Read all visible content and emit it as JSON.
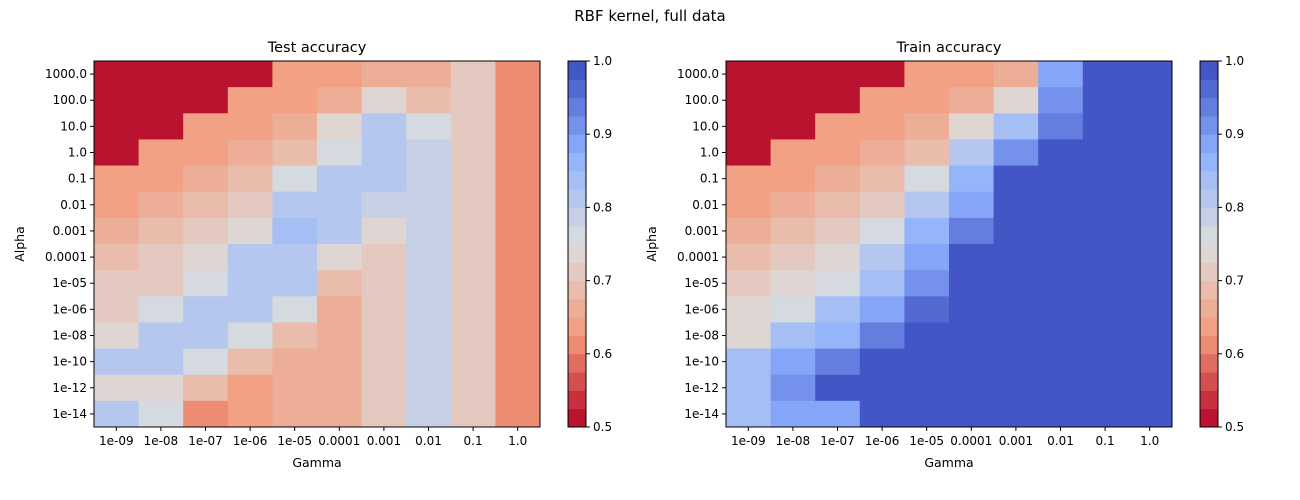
{
  "figure_title": "RBF kernel, full data",
  "chart_data": [
    {
      "type": "heatmap",
      "title": "Test accuracy",
      "xlabel": "Gamma",
      "ylabel": "Alpha",
      "x_categories": [
        "1e-09",
        "1e-08",
        "1e-07",
        "1e-06",
        "1e-05",
        "0.0001",
        "0.001",
        "0.01",
        "0.1",
        "1.0"
      ],
      "y_categories": [
        "1000.0",
        "100.0",
        "10.0",
        "1.0",
        "0.1",
        "0.01",
        "0.001",
        "0.0001",
        "1e-05",
        "1e-06",
        "1e-08",
        "1e-10",
        "1e-12",
        "1e-14"
      ],
      "values": [
        [
          0.5,
          0.5,
          0.5,
          0.5,
          0.64,
          0.64,
          0.67,
          0.67,
          0.71,
          0.62
        ],
        [
          0.5,
          0.5,
          0.5,
          0.64,
          0.64,
          0.66,
          0.73,
          0.7,
          0.71,
          0.62
        ],
        [
          0.5,
          0.5,
          0.64,
          0.64,
          0.66,
          0.73,
          0.81,
          0.75,
          0.71,
          0.62
        ],
        [
          0.5,
          0.64,
          0.64,
          0.66,
          0.7,
          0.77,
          0.81,
          0.78,
          0.71,
          0.62
        ],
        [
          0.64,
          0.64,
          0.66,
          0.7,
          0.75,
          0.81,
          0.81,
          0.78,
          0.71,
          0.62
        ],
        [
          0.64,
          0.66,
          0.7,
          0.72,
          0.8,
          0.8,
          0.78,
          0.78,
          0.71,
          0.62
        ],
        [
          0.66,
          0.69,
          0.72,
          0.74,
          0.84,
          0.8,
          0.74,
          0.78,
          0.71,
          0.62
        ],
        [
          0.68,
          0.72,
          0.73,
          0.8,
          0.8,
          0.74,
          0.72,
          0.78,
          0.71,
          0.62
        ],
        [
          0.71,
          0.72,
          0.77,
          0.8,
          0.8,
          0.68,
          0.72,
          0.78,
          0.71,
          0.62
        ],
        [
          0.72,
          0.75,
          0.8,
          0.8,
          0.77,
          0.66,
          0.72,
          0.78,
          0.71,
          0.62
        ],
        [
          0.74,
          0.8,
          0.8,
          0.77,
          0.7,
          0.66,
          0.72,
          0.78,
          0.71,
          0.62
        ],
        [
          0.81,
          0.81,
          0.77,
          0.7,
          0.66,
          0.66,
          0.72,
          0.78,
          0.71,
          0.62
        ],
        [
          0.74,
          0.74,
          0.69,
          0.64,
          0.66,
          0.66,
          0.72,
          0.78,
          0.71,
          0.62
        ],
        [
          0.81,
          0.77,
          0.62,
          0.64,
          0.66,
          0.66,
          0.72,
          0.78,
          0.71,
          0.62
        ]
      ],
      "colormap": "coolwarm_r",
      "colorbar": {
        "min": 0.5,
        "max": 1.0,
        "ticks": [
          "0.5",
          "0.6",
          "0.7",
          "0.8",
          "0.9",
          "1.0"
        ]
      }
    },
    {
      "type": "heatmap",
      "title": "Train accuracy",
      "xlabel": "Gamma",
      "ylabel": "Alpha",
      "x_categories": [
        "1e-09",
        "1e-08",
        "1e-07",
        "1e-06",
        "1e-05",
        "0.0001",
        "0.001",
        "0.01",
        "0.1",
        "1.0"
      ],
      "y_categories": [
        "1000.0",
        "100.0",
        "10.0",
        "1.0",
        "0.1",
        "0.01",
        "0.001",
        "0.0001",
        "1e-05",
        "1e-06",
        "1e-08",
        "1e-10",
        "1e-12",
        "1e-14"
      ],
      "values": [
        [
          0.5,
          0.5,
          0.5,
          0.5,
          0.64,
          0.64,
          0.67,
          0.88,
          1.0,
          1.0
        ],
        [
          0.5,
          0.5,
          0.5,
          0.64,
          0.64,
          0.66,
          0.73,
          0.9,
          1.0,
          1.0
        ],
        [
          0.5,
          0.5,
          0.64,
          0.64,
          0.66,
          0.73,
          0.84,
          0.93,
          1.0,
          1.0
        ],
        [
          0.5,
          0.64,
          0.64,
          0.66,
          0.7,
          0.8,
          0.9,
          1.0,
          1.0,
          1.0
        ],
        [
          0.64,
          0.64,
          0.66,
          0.7,
          0.75,
          0.86,
          1.0,
          1.0,
          1.0,
          1.0
        ],
        [
          0.64,
          0.66,
          0.7,
          0.72,
          0.8,
          0.89,
          1.0,
          1.0,
          1.0,
          1.0
        ],
        [
          0.66,
          0.69,
          0.72,
          0.77,
          0.86,
          0.93,
          1.0,
          1.0,
          1.0,
          1.0
        ],
        [
          0.68,
          0.72,
          0.73,
          0.8,
          0.89,
          1.0,
          1.0,
          1.0,
          1.0,
          1.0
        ],
        [
          0.71,
          0.74,
          0.77,
          0.84,
          0.91,
          1.0,
          1.0,
          1.0,
          1.0,
          1.0
        ],
        [
          0.74,
          0.75,
          0.84,
          0.88,
          0.96,
          1.0,
          1.0,
          1.0,
          1.0,
          1.0
        ],
        [
          0.74,
          0.83,
          0.86,
          0.93,
          1.0,
          1.0,
          1.0,
          1.0,
          1.0,
          1.0
        ],
        [
          0.84,
          0.88,
          0.94,
          1.0,
          1.0,
          1.0,
          1.0,
          1.0,
          1.0,
          1.0
        ],
        [
          0.84,
          0.91,
          1.0,
          1.0,
          1.0,
          1.0,
          1.0,
          1.0,
          1.0,
          1.0
        ],
        [
          0.84,
          0.89,
          0.89,
          1.0,
          1.0,
          1.0,
          1.0,
          1.0,
          1.0,
          1.0
        ]
      ],
      "colormap": "coolwarm_r",
      "colorbar": {
        "min": 0.5,
        "max": 1.0,
        "ticks": [
          "0.5",
          "0.6",
          "0.7",
          "0.8",
          "0.9",
          "1.0"
        ]
      }
    }
  ]
}
